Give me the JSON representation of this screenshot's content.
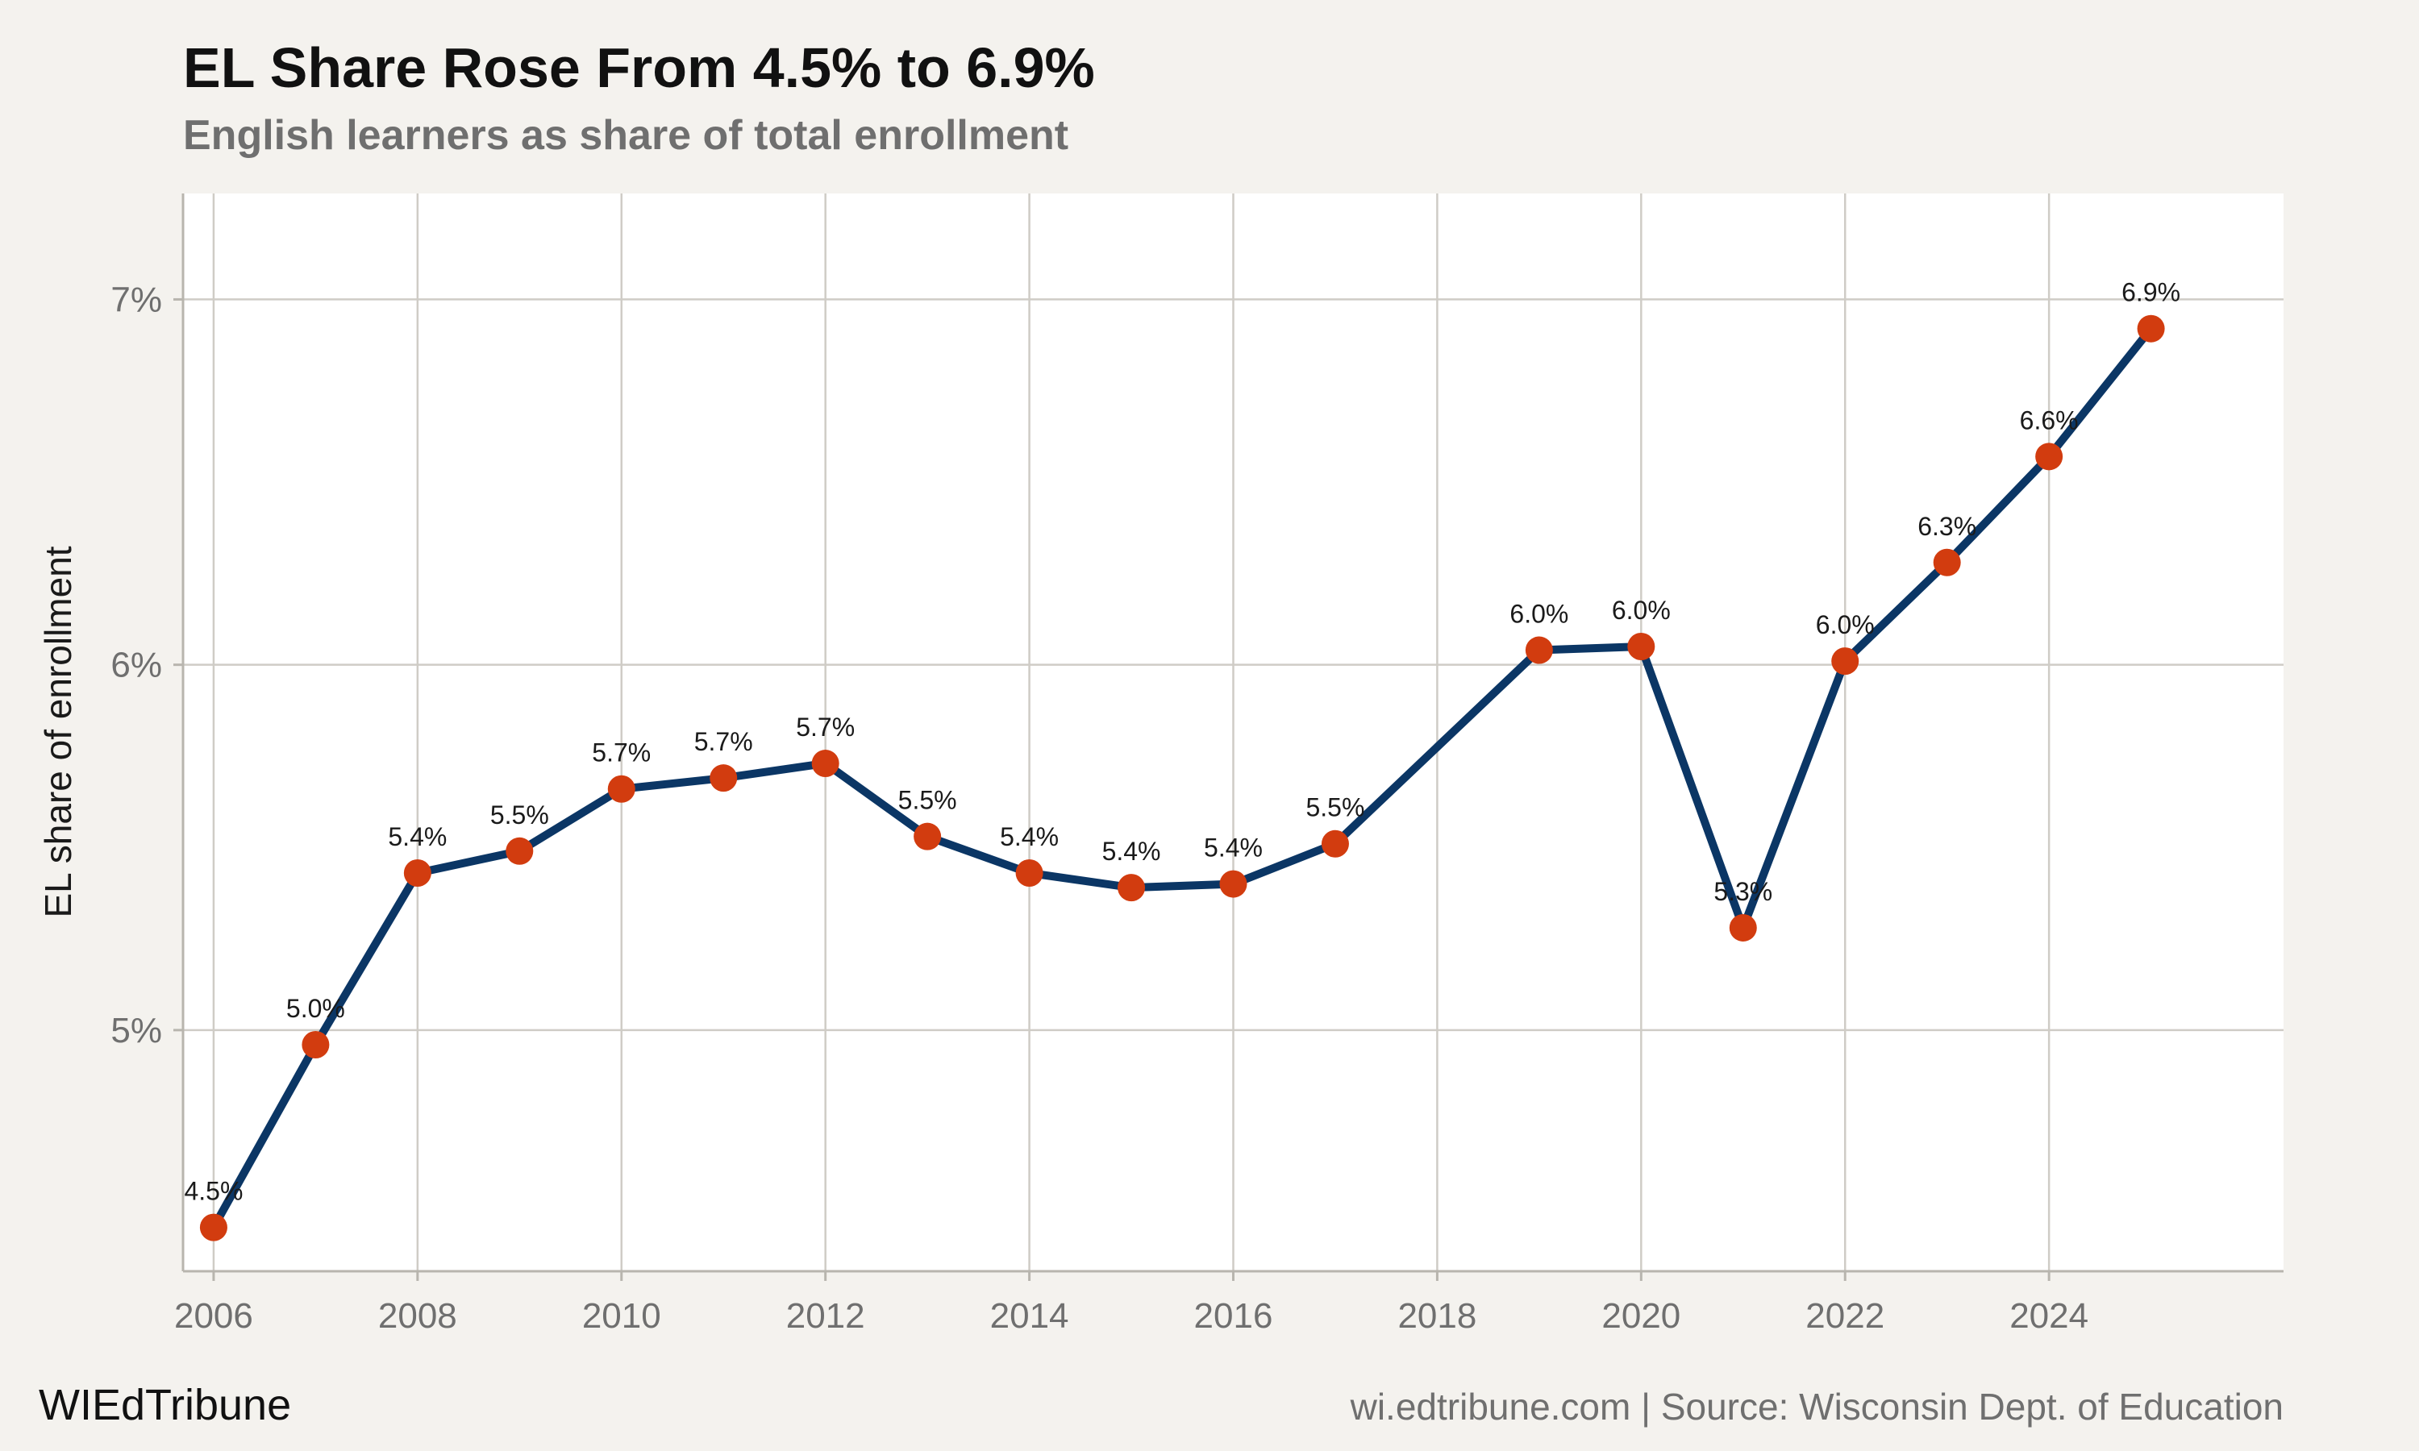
{
  "header": {
    "title": "EL Share Rose From 4.5% to 6.9%",
    "subtitle": "English learners as share of total enrollment"
  },
  "footer": {
    "brand": "WIEdTribune",
    "source": "wi.edtribune.com | Source: Wisconsin Dept. of Education"
  },
  "colors": {
    "line": "#0b3665",
    "marker": "#d23c0f",
    "grid": "#cfccc6",
    "panel": "#ffffff",
    "background": "#f4f2ee"
  },
  "chart_data": {
    "type": "line",
    "title": "EL Share Rose From 4.5% to 6.9%",
    "subtitle": "English learners as share of total enrollment",
    "xlabel": "",
    "ylabel": "EL share of enrollment",
    "xlim": [
      2005.7,
      2026.3
    ],
    "ylim": [
      4.34,
      7.29
    ],
    "x_ticks": [
      2006,
      2008,
      2010,
      2012,
      2014,
      2016,
      2018,
      2020,
      2022,
      2024
    ],
    "y_ticks": [
      5,
      6,
      7
    ],
    "y_tick_labels": [
      "5%",
      "6%",
      "7%"
    ],
    "grid": true,
    "legend": "none",
    "series": [
      {
        "x": [
          2006,
          2007,
          2008,
          2009,
          2010,
          2011,
          2012,
          2013,
          2014,
          2015,
          2016,
          2017,
          2019,
          2020,
          2021,
          2022,
          2023,
          2024,
          2025
        ],
        "values": [
          4.46,
          4.96,
          5.43,
          5.49,
          5.66,
          5.69,
          5.73,
          5.53,
          5.43,
          5.39,
          5.4,
          5.51,
          6.04,
          6.05,
          5.28,
          6.01,
          6.28,
          6.57,
          6.92
        ],
        "labels": [
          "4.5%",
          "5.0%",
          "5.4%",
          "5.5%",
          "5.7%",
          "5.7%",
          "5.7%",
          "5.5%",
          "5.4%",
          "5.4%",
          "5.4%",
          "5.5%",
          "6.0%",
          "6.0%",
          "5.3%",
          "6.0%",
          "6.3%",
          "6.6%",
          "6.9%"
        ]
      }
    ]
  }
}
